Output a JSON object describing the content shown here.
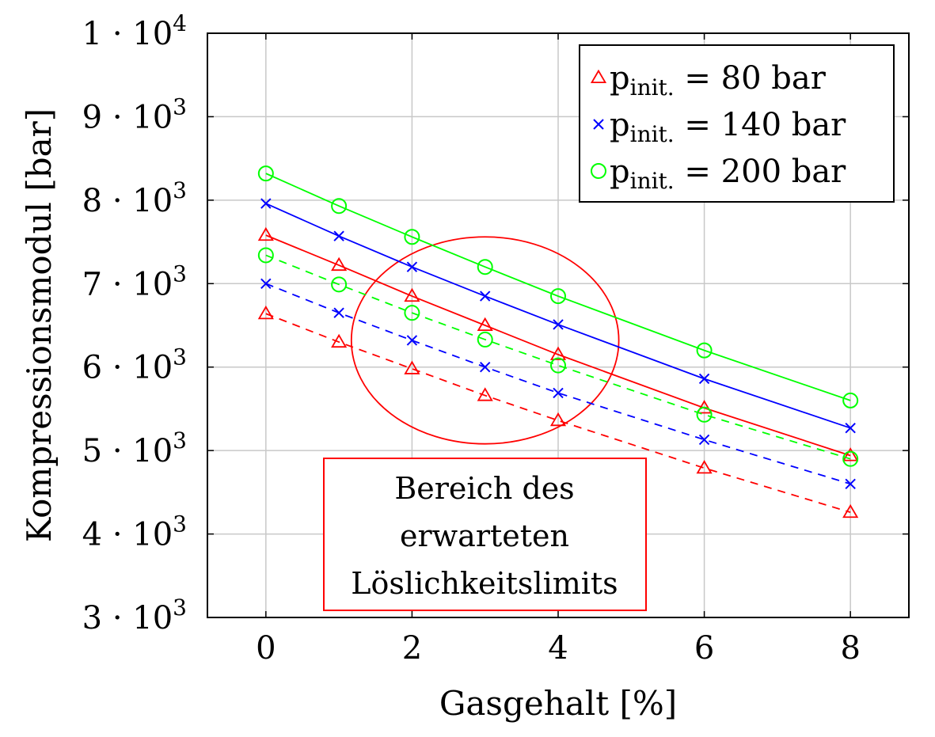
{
  "chart_data": {
    "type": "line",
    "title": "",
    "xlabel": "Gasgehalt [%]",
    "ylabel": "Kompressionsmodul [bar]",
    "xlim": [
      -0.8,
      8.8
    ],
    "ylim": [
      3000,
      10000
    ],
    "xticks": [
      0,
      2,
      4,
      6,
      8
    ],
    "xtick_labels": [
      "0",
      "2",
      "4",
      "6",
      "8"
    ],
    "yticks": [
      {
        "value": 3000,
        "mant": "3",
        "exp": "3"
      },
      {
        "value": 4000,
        "mant": "4",
        "exp": "3"
      },
      {
        "value": 5000,
        "mant": "5",
        "exp": "3"
      },
      {
        "value": 6000,
        "mant": "6",
        "exp": "3"
      },
      {
        "value": 7000,
        "mant": "7",
        "exp": "3"
      },
      {
        "value": 8000,
        "mant": "8",
        "exp": "3"
      },
      {
        "value": 9000,
        "mant": "9",
        "exp": "3"
      },
      {
        "value": 10000,
        "mant": "1",
        "exp": "4"
      }
    ],
    "grid": true,
    "legend_position": "top-right",
    "series": [
      {
        "legend": {
          "base": "p",
          "sub": "init.",
          "rest": " = 80 bar"
        },
        "color": "#ff0000",
        "marker": "triangle",
        "style": "solid",
        "x": [
          0,
          1,
          2,
          3,
          4,
          6,
          8
        ],
        "y": [
          7580,
          7220,
          6850,
          6500,
          6150,
          5510,
          4940
        ]
      },
      {
        "color": "#ff0000",
        "marker": "triangle",
        "style": "dashed",
        "x": [
          0,
          1,
          2,
          3,
          4,
          6,
          8
        ],
        "y": [
          6640,
          6300,
          5980,
          5660,
          5360,
          4790,
          4260
        ]
      },
      {
        "legend": {
          "base": "p",
          "sub": "init.",
          "rest": " = 140 bar"
        },
        "color": "#0000ff",
        "marker": "x",
        "style": "solid",
        "x": [
          0,
          1,
          2,
          3,
          4,
          6,
          8
        ],
        "y": [
          7960,
          7570,
          7200,
          6850,
          6510,
          5860,
          5270
        ]
      },
      {
        "color": "#0000ff",
        "marker": "x",
        "style": "dashed",
        "x": [
          0,
          1,
          2,
          3,
          4,
          6,
          8
        ],
        "y": [
          7000,
          6650,
          6320,
          6000,
          5690,
          5130,
          4600
        ]
      },
      {
        "legend": {
          "base": "p",
          "sub": "init.",
          "rest": " = 200 bar"
        },
        "color": "#00ff00",
        "marker": "circle",
        "style": "solid",
        "x": [
          0,
          1,
          2,
          3,
          4,
          6,
          8
        ],
        "y": [
          8320,
          7930,
          7560,
          7200,
          6850,
          6200,
          5600
        ]
      },
      {
        "color": "#00ff00",
        "marker": "circle",
        "style": "dashed",
        "x": [
          0,
          1,
          2,
          3,
          4,
          6,
          8
        ],
        "y": [
          7340,
          6990,
          6650,
          6330,
          6020,
          5430,
          4900
        ]
      }
    ],
    "annotations": {
      "ellipse": {
        "cx": 3.0,
        "cy": 6320,
        "rx": 1.83,
        "ry": 1240,
        "color": "#ff0000"
      },
      "note_lines": [
        "Bereich des",
        "erwarteten",
        "Löslichkeitslimits"
      ],
      "note_color": "#ff0000"
    }
  }
}
